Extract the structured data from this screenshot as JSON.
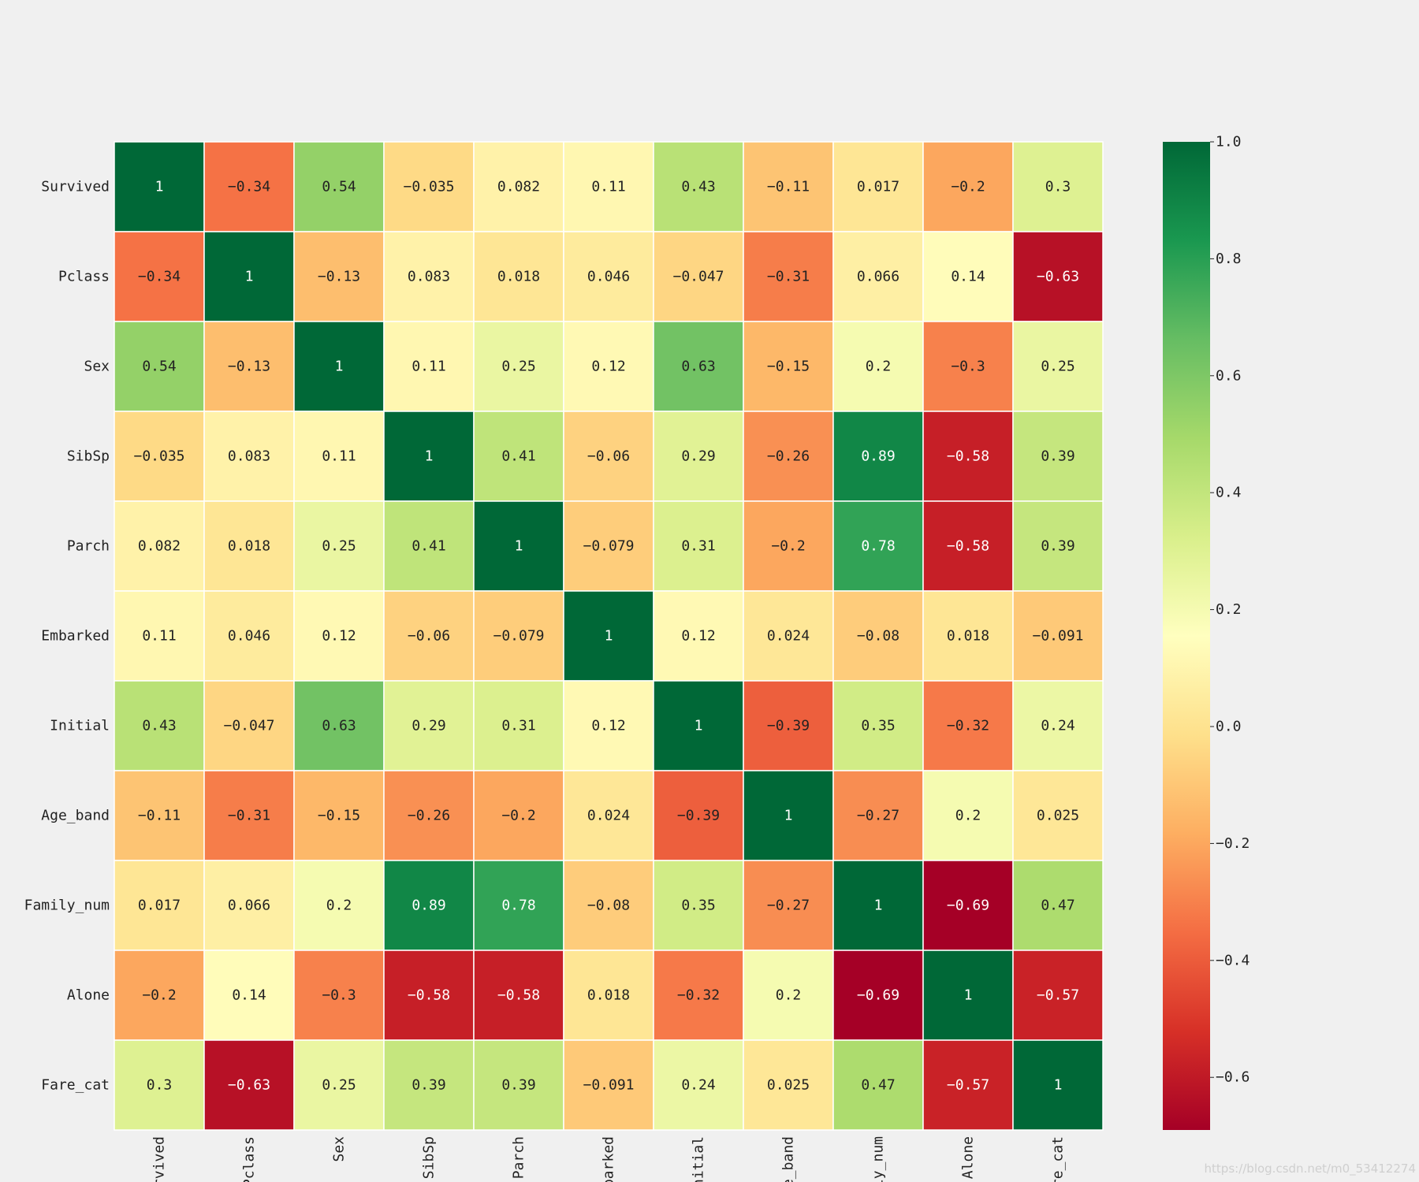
{
  "chart_data": {
    "type": "heatmap",
    "title": "",
    "labels": [
      "Survived",
      "Pclass",
      "Sex",
      "SibSp",
      "Parch",
      "Embarked",
      "Initial",
      "Age_band",
      "Family_num",
      "Alone",
      "Fare_cat"
    ],
    "matrix": [
      [
        1,
        -0.34,
        0.54,
        -0.035,
        0.082,
        0.11,
        0.43,
        -0.11,
        0.017,
        -0.2,
        0.3
      ],
      [
        -0.34,
        1,
        -0.13,
        0.083,
        0.018,
        0.046,
        -0.047,
        -0.31,
        0.066,
        0.14,
        -0.63
      ],
      [
        0.54,
        -0.13,
        1,
        0.11,
        0.25,
        0.12,
        0.63,
        -0.15,
        0.2,
        -0.3,
        0.25
      ],
      [
        -0.035,
        0.083,
        0.11,
        1,
        0.41,
        -0.06,
        0.29,
        -0.26,
        0.89,
        -0.58,
        0.39
      ],
      [
        0.082,
        0.018,
        0.25,
        0.41,
        1,
        -0.079,
        0.31,
        -0.2,
        0.78,
        -0.58,
        0.39
      ],
      [
        0.11,
        0.046,
        0.12,
        -0.06,
        -0.079,
        1,
        0.12,
        0.024,
        -0.08,
        0.018,
        -0.091
      ],
      [
        0.43,
        -0.047,
        0.63,
        0.29,
        0.31,
        0.12,
        1,
        -0.39,
        0.35,
        -0.32,
        0.24
      ],
      [
        -0.11,
        -0.31,
        -0.15,
        -0.26,
        -0.2,
        0.024,
        -0.39,
        1,
        -0.27,
        0.2,
        0.025
      ],
      [
        0.017,
        0.066,
        0.2,
        0.89,
        0.78,
        -0.08,
        0.35,
        -0.27,
        1,
        -0.69,
        0.47
      ],
      [
        -0.2,
        0.14,
        -0.3,
        -0.58,
        -0.58,
        0.018,
        -0.32,
        0.2,
        -0.69,
        1,
        -0.57
      ],
      [
        0.3,
        -0.63,
        0.25,
        0.39,
        0.39,
        -0.091,
        0.24,
        0.025,
        0.47,
        -0.57,
        1
      ]
    ],
    "colormap": "RdYlGn",
    "vmin": -0.69,
    "vmax": 1.0,
    "annotations": true,
    "colorbar_ticks": [
      1.0,
      0.8,
      0.6,
      0.4,
      0.2,
      0.0,
      -0.2,
      -0.4,
      -0.6
    ],
    "colorbar_tick_labels": [
      "1.0",
      "0.8",
      "0.6",
      "0.4",
      "0.2",
      "0.0",
      "−0.2",
      "−0.4",
      "−0.6"
    ],
    "legend": "right (colorbar)",
    "minus_sign": "−"
  },
  "watermark": "https://blog.csdn.net/m0_53412274",
  "colors": {
    "background": "#f0f0f0",
    "cell_border": "#ffffff",
    "text_dark": "#222222",
    "text_light": "#ffffff"
  }
}
